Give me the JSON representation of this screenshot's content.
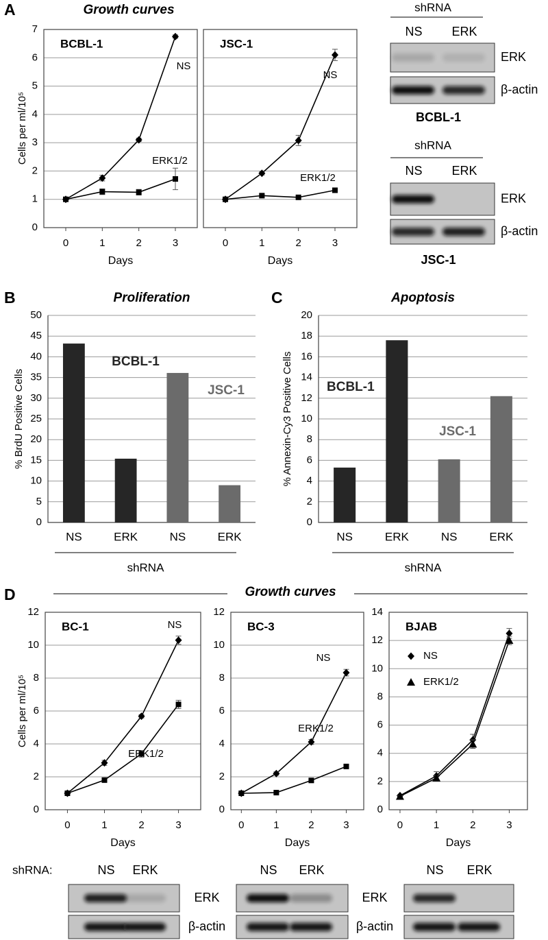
{
  "sections": [
    {
      "letter": "A",
      "title": "Growth curves"
    },
    {
      "letter": "B"
    },
    {
      "letter": "C"
    },
    {
      "letter": "D",
      "title": "Growth curves"
    }
  ],
  "blots": [
    {
      "header": "shRNA",
      "lanes": [
        "NS",
        "ERK"
      ],
      "bands": [
        "ERK",
        "β-actin"
      ],
      "cell": "BCBL-1"
    },
    {
      "header": "shRNA",
      "lanes": [
        "NS",
        "ERK"
      ],
      "bands": [
        "ERK",
        "β-actin"
      ],
      "cell": "JSC-1"
    },
    {
      "header": "shRNA:",
      "lanes": [
        "NS",
        "ERK"
      ],
      "bands": [
        "ERK",
        "β-actin"
      ]
    },
    {
      "lanes": [
        "NS",
        "ERK"
      ],
      "bands": [
        "ERK",
        "β-actin"
      ]
    },
    {
      "lanes": [
        "NS",
        "ERK"
      ]
    }
  ],
  "chart_data": [
    {
      "type": "line",
      "title": "BCBL-1",
      "xlabel": "Days",
      "ylabel": "Cells per ml/10⁵",
      "x": [
        0,
        1,
        2,
        3
      ],
      "xlim": [
        -0.6,
        3.6
      ],
      "xticks": [
        0,
        1,
        2,
        3
      ],
      "ylim": [
        0,
        7
      ],
      "yticks": [
        0,
        1,
        2,
        3,
        4,
        5,
        6,
        7
      ],
      "grid": true,
      "series": [
        {
          "name": "NS",
          "color": "#000000",
          "marker": "diamond",
          "values": [
            1,
            1.75,
            3.1,
            6.75
          ],
          "errors": [
            0.03,
            0.1,
            0.06,
            0.06
          ]
        },
        {
          "name": "ERK1/2",
          "color": "#000000",
          "marker": "square",
          "values": [
            1,
            1.27,
            1.25,
            1.72
          ],
          "errors": [
            0.03,
            0.1,
            0.1,
            0.38
          ]
        }
      ]
    },
    {
      "type": "line",
      "title": "JSC-1",
      "xlabel": "Days",
      "x": [
        0,
        1,
        2,
        3
      ],
      "xlim": [
        -0.6,
        3.6
      ],
      "xticks": [
        0,
        1,
        2,
        3
      ],
      "ylim": [
        0,
        7
      ],
      "yticks": [
        0,
        1,
        2,
        3,
        4,
        5,
        6,
        7
      ],
      "grid": true,
      "series": [
        {
          "name": "NS",
          "color": "#000000",
          "marker": "diamond",
          "values": [
            1,
            1.92,
            3.08,
            6.1
          ],
          "errors": [
            0.03,
            0.06,
            0.18,
            0.2
          ]
        },
        {
          "name": "ERK1/2",
          "color": "#000000",
          "marker": "square",
          "values": [
            1,
            1.13,
            1.07,
            1.32
          ],
          "errors": [
            0.03,
            0.05,
            0.04,
            0.06
          ]
        }
      ]
    },
    {
      "type": "bar",
      "title": "Proliferation",
      "xlabel": "shRNA",
      "ylabel": "% BrdU Positive Cells",
      "categories": [
        "NS",
        "ERK",
        "NS",
        "ERK"
      ],
      "ylim": [
        0,
        50
      ],
      "yticks": [
        0,
        5,
        10,
        15,
        20,
        25,
        30,
        35,
        40,
        45,
        50
      ],
      "grid": true,
      "series": [
        {
          "name": "BCBL-1",
          "color": "#262626",
          "values": [
            43.2,
            15.4,
            null,
            null
          ]
        },
        {
          "name": "JSC-1",
          "color": "#6b6b6b",
          "values": [
            null,
            null,
            36.1,
            9.0
          ]
        }
      ]
    },
    {
      "type": "bar",
      "title": "Apoptosis",
      "xlabel": "shRNA",
      "ylabel": "% Annexin-Cy3 Positive Cells",
      "categories": [
        "NS",
        "ERK",
        "NS",
        "ERK"
      ],
      "ylim": [
        0,
        20
      ],
      "yticks": [
        0,
        2,
        4,
        6,
        8,
        10,
        12,
        14,
        16,
        18,
        20
      ],
      "grid": true,
      "series": [
        {
          "name": "BCBL-1",
          "color": "#262626",
          "values": [
            5.3,
            17.6,
            null,
            null
          ]
        },
        {
          "name": "JSC-1",
          "color": "#6b6b6b",
          "values": [
            null,
            null,
            6.1,
            12.2
          ]
        }
      ]
    },
    {
      "type": "line",
      "title": "BC-1",
      "xlabel": "Days",
      "ylabel": "Cells per ml/10⁵",
      "x": [
        0,
        1,
        2,
        3
      ],
      "xlim": [
        -0.6,
        3.6
      ],
      "xticks": [
        0,
        1,
        2,
        3
      ],
      "ylim": [
        0,
        12
      ],
      "yticks": [
        0,
        2,
        4,
        6,
        8,
        10,
        12
      ],
      "grid": true,
      "series": [
        {
          "name": "NS",
          "color": "#000000",
          "marker": "diamond",
          "values": [
            1,
            2.85,
            5.68,
            10.3
          ],
          "errors": [
            0.05,
            0.15,
            0.1,
            0.25
          ]
        },
        {
          "name": "ERK1/2",
          "color": "#000000",
          "marker": "square",
          "values": [
            1,
            1.8,
            3.4,
            6.4
          ],
          "errors": [
            0.05,
            0.07,
            0.2,
            0.25
          ]
        }
      ]
    },
    {
      "type": "line",
      "title": "BC-3",
      "xlabel": "Days",
      "x": [
        0,
        1,
        2,
        3
      ],
      "xlim": [
        -0.3,
        3.5
      ],
      "xticks": [
        0,
        1,
        2,
        3
      ],
      "ylim": [
        0,
        12
      ],
      "yticks": [
        0,
        2,
        4,
        6,
        8,
        10,
        12
      ],
      "grid": true,
      "series": [
        {
          "name": "NS",
          "color": "#000000",
          "marker": "diamond",
          "values": [
            1,
            2.2,
            4.12,
            8.33
          ],
          "errors": [
            0.04,
            0.1,
            0.15,
            0.2
          ]
        },
        {
          "name": "ERK1/2",
          "color": "#000000",
          "marker": "square",
          "values": [
            1,
            1.04,
            1.78,
            2.63
          ],
          "errors": [
            0.03,
            0.04,
            0.05,
            0.1
          ]
        }
      ]
    },
    {
      "type": "line",
      "title": "BJAB",
      "xlabel": "Days",
      "x": [
        0,
        1,
        2,
        3
      ],
      "xlim": [
        -0.3,
        3.5
      ],
      "xticks": [
        0,
        1,
        2,
        3
      ],
      "ylim": [
        0,
        14
      ],
      "yticks": [
        0,
        2,
        4,
        6,
        8,
        10,
        12,
        14
      ],
      "grid": true,
      "legend": "upper left",
      "series": [
        {
          "name": "NS",
          "color": "#000000",
          "marker": "diamond",
          "values": [
            1,
            2.4,
            4.95,
            12.5
          ],
          "errors": [
            0.05,
            0.3,
            0.4,
            0.35
          ]
        },
        {
          "name": "ERK1/2",
          "color": "#000000",
          "marker": "triangle",
          "values": [
            0.95,
            2.25,
            4.65,
            12.0
          ],
          "errors": [
            0.05,
            0.15,
            0.3,
            0.3
          ]
        }
      ]
    }
  ]
}
